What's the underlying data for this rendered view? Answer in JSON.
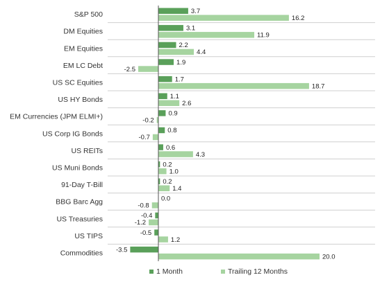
{
  "chart_data": {
    "type": "bar",
    "orientation": "horizontal",
    "title": "",
    "xlabel": "",
    "ylabel": "",
    "categories": [
      "S&P 500",
      "DM Equities",
      "EM Equities",
      "EM LC Debt",
      "US SC Equities",
      "US HY Bonds",
      "EM Currencies (JPM ELMI+)",
      "US Corp IG Bonds",
      "US REITs",
      "US Muni Bonds",
      "91-Day T-Bill",
      "BBG Barc Agg",
      "US Treasuries",
      "US TIPS",
      "Commodities"
    ],
    "series": [
      {
        "name": "1 Month",
        "color": "#5aa05a",
        "values": [
          3.7,
          3.1,
          2.2,
          1.9,
          1.7,
          1.1,
          0.9,
          0.8,
          0.6,
          0.2,
          0.2,
          0.0,
          -0.4,
          -0.5,
          -3.5
        ],
        "labels": [
          "3.7",
          "3.1",
          "2.2",
          "1.9",
          "1.7",
          "1.1",
          "0.9",
          "0.8",
          "0.6",
          "0.2",
          "0.2",
          "0.0",
          "-0.4",
          "-0.5",
          "-3.5"
        ]
      },
      {
        "name": "Trailing 12 Months",
        "color": "#a6d4a0",
        "values": [
          16.2,
          11.9,
          4.4,
          -2.5,
          18.7,
          2.6,
          -0.2,
          -0.7,
          4.3,
          1.0,
          1.4,
          -0.8,
          -1.2,
          1.2,
          20.0
        ],
        "labels": [
          "16.2",
          "11.9",
          "4.4",
          "-2.5",
          "18.7",
          "2.6",
          "-0.2",
          "-0.7",
          "4.3",
          "1.0",
          "1.4",
          "-0.8",
          "-1.2",
          "1.2",
          "20.0"
        ]
      }
    ],
    "xlim": [
      -5,
      21
    ],
    "grid": false,
    "legend": "bottom-center",
    "row_separators": true
  }
}
